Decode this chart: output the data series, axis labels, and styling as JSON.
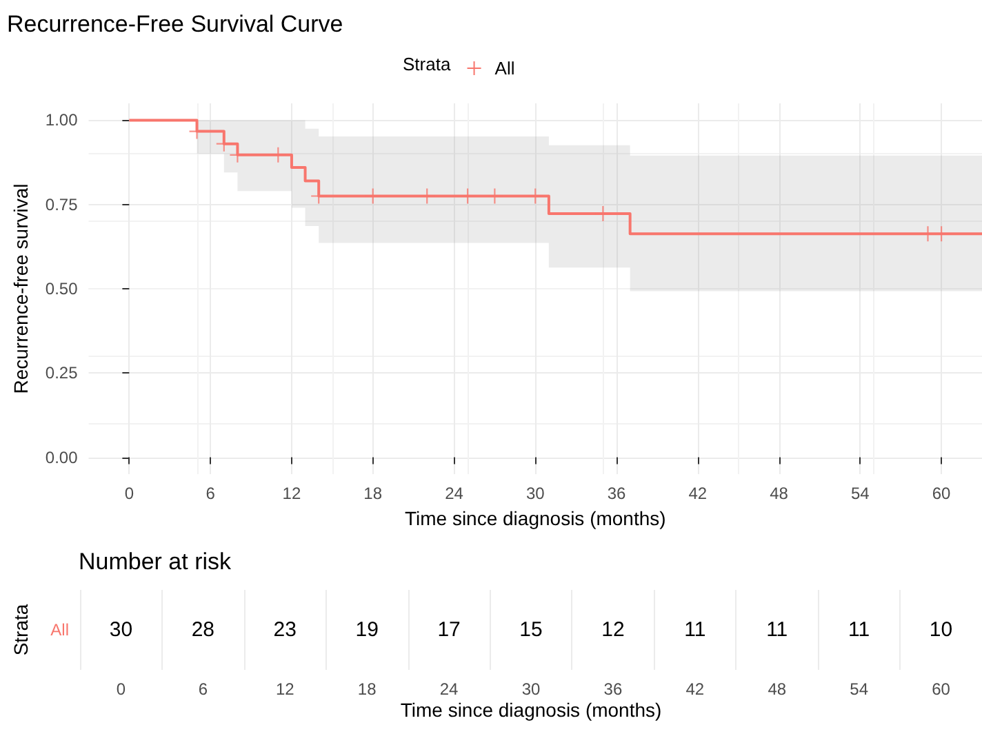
{
  "chart_data": [
    {
      "type": "step",
      "title": "Recurrence-Free Survival Curve",
      "xlabel": "Time since diagnosis (months)",
      "ylabel": "Recurrence-free survival",
      "legend_title": "Strata",
      "legend": "top",
      "grid": true,
      "line_style": "solid",
      "xlim": [
        -3,
        63
      ],
      "ylim": [
        -0.05,
        1.05
      ],
      "xticks": [
        0,
        6,
        12,
        18,
        24,
        30,
        36,
        42,
        48,
        54,
        60
      ],
      "yticks": [
        {
          "value": 0,
          "label": "0.00"
        },
        {
          "value": 0.25,
          "label": "0.25"
        },
        {
          "value": 0.5,
          "label": "0.50"
        },
        {
          "value": 0.75,
          "label": "0.75"
        },
        {
          "value": 1,
          "label": "1.00"
        }
      ],
      "series": [
        {
          "name": "All",
          "color": "#f8766d",
          "marker": "none",
          "x": [
            0,
            5,
            7,
            8,
            12,
            13,
            14,
            31,
            37,
            63
          ],
          "values": [
            1,
            0.967,
            0.93,
            0.897,
            0.86,
            0.82,
            0.775,
            0.723,
            0.663,
            0.663
          ],
          "lower": [
            1,
            0.9,
            0.845,
            0.79,
            0.74,
            0.686,
            0.636,
            0.563,
            0.493,
            0.493
          ],
          "upper": [
            1,
            1,
            1,
            1,
            1,
            0.975,
            0.952,
            0.926,
            0.895,
            0.895
          ]
        },
        {
          "type": "scatter",
          "color": "#f8766d",
          "marker": "cross",
          "x": [
            5,
            7,
            8,
            11,
            14,
            18,
            22,
            25,
            27,
            30,
            35,
            59,
            60
          ],
          "values": [
            0.967,
            0.93,
            0.897,
            0.897,
            0.775,
            0.775,
            0.775,
            0.775,
            0.775,
            0.775,
            0.723,
            0.663,
            0.663
          ]
        }
      ]
    },
    {
      "type": "heatmap",
      "title": "Number at risk",
      "xlabel": "Time since diagnosis (months)",
      "ylabel": "Strata",
      "grid": "x",
      "data_labels": true,
      "categories": [
        "0",
        "6",
        "12",
        "18",
        "24",
        "30",
        "36",
        "42",
        "48",
        "54",
        "60"
      ],
      "y_categories": [
        "All"
      ],
      "cells": [
        [
          30,
          28,
          23,
          19,
          17,
          15,
          12,
          11,
          11,
          11,
          10
        ]
      ]
    }
  ]
}
